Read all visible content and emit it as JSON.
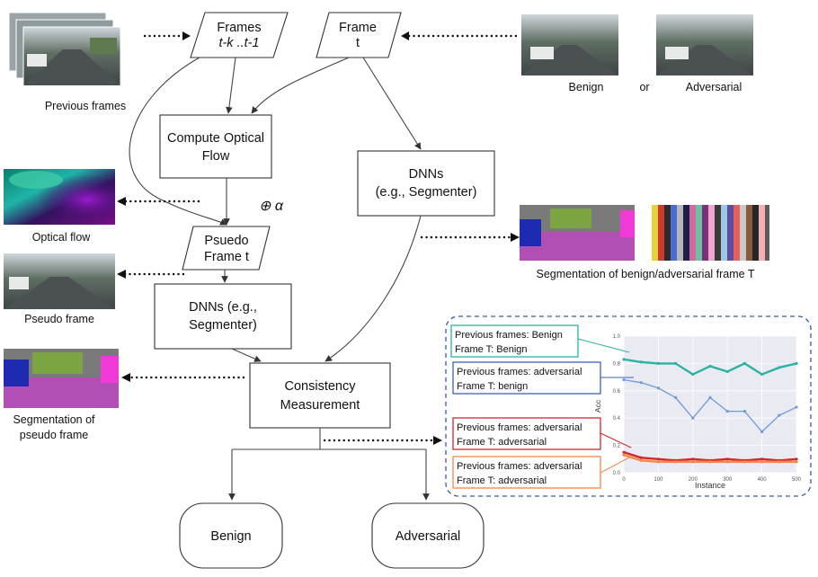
{
  "inputs": {
    "previous_frames_label": "Previous frames",
    "frames_prev_line1": "Frames",
    "frames_prev_line2": "t-k ..t-1",
    "frame_t_line1": "Frame",
    "frame_t_line2": "t",
    "benign_label": "Benign",
    "or_label": "or",
    "adversarial_label": "Adversarial"
  },
  "pipeline": {
    "optical_flow_box_line1": "Compute Optical",
    "optical_flow_box_line2": "Flow",
    "alpha_label": "⊕ α",
    "pseudo_frame_line1": "Psuedo",
    "pseudo_frame_line2": "Frame t",
    "dnn_left_line1": "DNNs (e.g.,",
    "dnn_left_line2": "Segmenter)",
    "dnn_right_line1": "DNNs",
    "dnn_right_line2": "(e.g., Segmenter)",
    "consistency_line1": "Consistency",
    "consistency_line2": "Measurement",
    "out_benign": "Benign",
    "out_adversarial": "Adversarial"
  },
  "side_images": {
    "optical_flow_label": "Optical flow",
    "pseudo_frame_label": "Pseudo frame",
    "seg_pseudo_line1": "Segmentation of",
    "seg_pseudo_line2": "pseudo frame",
    "seg_benign_adv_label": "Segmentation of benign/adversarial frame T"
  },
  "inset_chart": {
    "ylabel": "Acc",
    "xlabel": "Instance",
    "yticks": [
      "1.0",
      "0.8",
      "0.6",
      "0.4",
      "0.2",
      "0.0"
    ],
    "xticks": [
      "0",
      "100",
      "200",
      "300",
      "400",
      "500"
    ],
    "legend": [
      {
        "line1": "Previous frames: Benign",
        "line2": "Frame T: Benign",
        "color": "#2bb3a3"
      },
      {
        "line1": "Previous frames: adversarial",
        "line2": "Frame T: benign",
        "color": "#3a63b8"
      },
      {
        "line1": "Previous frames: adversarial",
        "line2": "Frame T: adversarial",
        "color": "#d62828"
      },
      {
        "line1": "Previous frames: adversarial",
        "line2": "Frame T: adversarial",
        "color": "#f08a4b"
      }
    ]
  },
  "chart_data": {
    "type": "line",
    "xlabel": "Instance",
    "ylabel": "Acc",
    "xlim": [
      0,
      500
    ],
    "ylim": [
      0,
      1.0
    ],
    "x": [
      0,
      50,
      100,
      150,
      200,
      250,
      300,
      350,
      400,
      450,
      500
    ],
    "series": [
      {
        "name": "Previous frames: Benign / Frame T: Benign",
        "color": "#2bb3a3",
        "values": [
          0.83,
          0.81,
          0.8,
          0.8,
          0.72,
          0.78,
          0.74,
          0.8,
          0.72,
          0.77,
          0.8
        ]
      },
      {
        "name": "Previous frames: adversarial / Frame T: benign",
        "color": "#6f9be0",
        "values": [
          0.68,
          0.66,
          0.62,
          0.55,
          0.4,
          0.55,
          0.45,
          0.45,
          0.3,
          0.42,
          0.48
        ]
      },
      {
        "name": "Previous frames: adversarial / Frame T: adversarial",
        "color": "#d62828",
        "values": [
          0.15,
          0.11,
          0.1,
          0.09,
          0.1,
          0.09,
          0.1,
          0.09,
          0.1,
          0.09,
          0.1
        ]
      },
      {
        "name": "Previous frames: adversarial / Frame T: adversarial",
        "color": "#f08a4b",
        "values": [
          0.13,
          0.09,
          0.08,
          0.08,
          0.08,
          0.08,
          0.08,
          0.08,
          0.08,
          0.08,
          0.08
        ]
      }
    ]
  }
}
